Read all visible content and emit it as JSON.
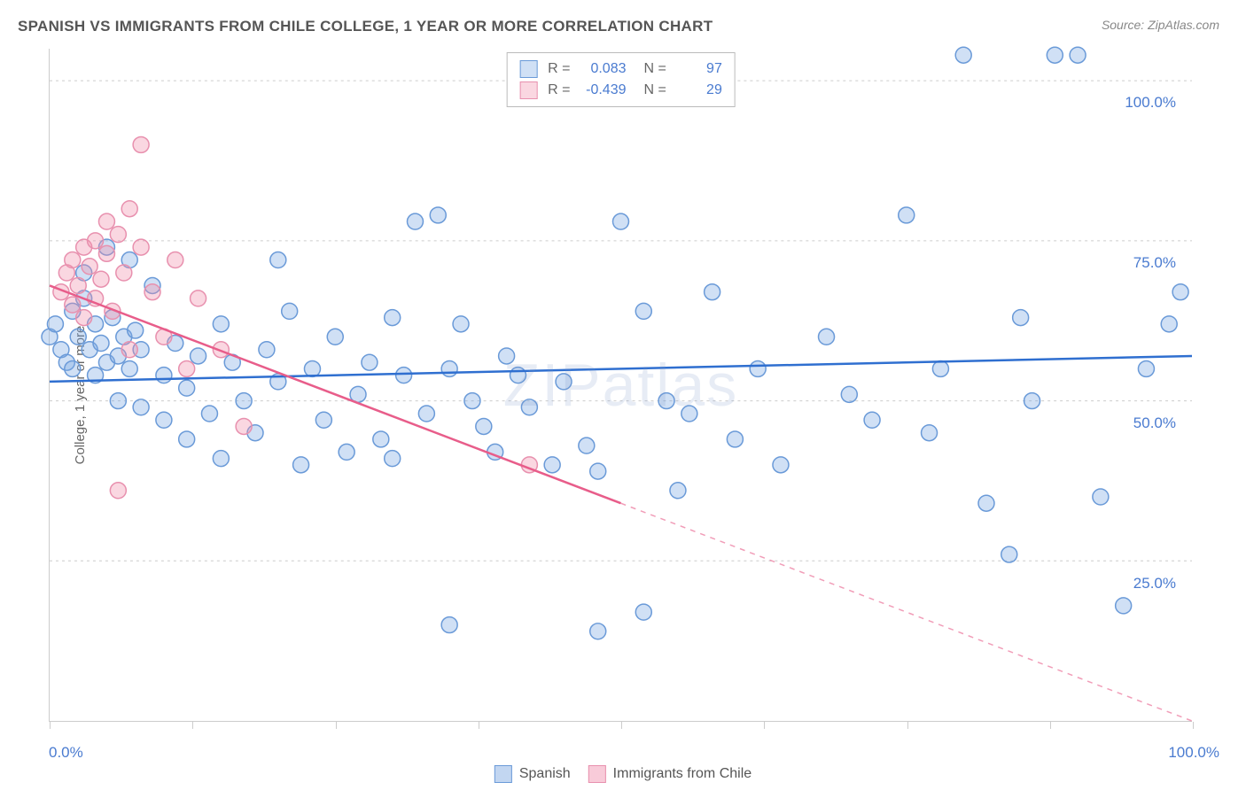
{
  "title": "SPANISH VS IMMIGRANTS FROM CHILE COLLEGE, 1 YEAR OR MORE CORRELATION CHART",
  "source": "Source: ZipAtlas.com",
  "ylabel": "College, 1 year or more",
  "watermark": "ZIPatlas",
  "chart": {
    "type": "scatter",
    "xlim": [
      0,
      100
    ],
    "ylim": [
      0,
      105
    ],
    "x_tick_positions": [
      0,
      12.5,
      25,
      37.5,
      50,
      62.5,
      75,
      87.5,
      100
    ],
    "x_tick_labels_shown": {
      "0": "0.0%",
      "100": "100.0%"
    },
    "y_gridlines": [
      25,
      50,
      75,
      100
    ],
    "y_tick_labels": {
      "25": "25.0%",
      "50": "50.0%",
      "75": "75.0%",
      "100": "100.0%"
    },
    "grid_color": "#cccccc",
    "background_color": "#ffffff",
    "axis_label_color": "#4a7bd0",
    "series": [
      {
        "name": "Spanish",
        "marker_color_fill": "rgba(120,165,225,0.35)",
        "marker_color_stroke": "#6a9ad8",
        "marker_radius": 9,
        "trend_color": "#2f6fd0",
        "trend_width": 2.5,
        "trend": {
          "x1": 0,
          "y1": 53,
          "x2": 100,
          "y2": 57,
          "solid_until_x": 100
        },
        "R": "0.083",
        "N": "97",
        "points": [
          [
            0,
            60
          ],
          [
            0.5,
            62
          ],
          [
            1,
            58
          ],
          [
            1.5,
            56
          ],
          [
            2,
            64
          ],
          [
            2,
            55
          ],
          [
            2.5,
            60
          ],
          [
            3,
            66
          ],
          [
            3.5,
            58
          ],
          [
            4,
            62
          ],
          [
            4,
            54
          ],
          [
            4.5,
            59
          ],
          [
            5,
            56
          ],
          [
            5.5,
            63
          ],
          [
            6,
            57
          ],
          [
            6,
            50
          ],
          [
            6.5,
            60
          ],
          [
            7,
            55
          ],
          [
            7.5,
            61
          ],
          [
            8,
            58
          ],
          [
            8,
            49
          ],
          [
            3,
            70
          ],
          [
            5,
            74
          ],
          [
            7,
            72
          ],
          [
            9,
            68
          ],
          [
            10,
            54
          ],
          [
            10,
            47
          ],
          [
            11,
            59
          ],
          [
            12,
            52
          ],
          [
            12,
            44
          ],
          [
            13,
            57
          ],
          [
            14,
            48
          ],
          [
            15,
            62
          ],
          [
            15,
            41
          ],
          [
            16,
            56
          ],
          [
            17,
            50
          ],
          [
            18,
            45
          ],
          [
            19,
            58
          ],
          [
            20,
            53
          ],
          [
            20,
            72
          ],
          [
            21,
            64
          ],
          [
            22,
            40
          ],
          [
            23,
            55
          ],
          [
            24,
            47
          ],
          [
            25,
            60
          ],
          [
            26,
            42
          ],
          [
            27,
            51
          ],
          [
            28,
            56
          ],
          [
            29,
            44
          ],
          [
            30,
            63
          ],
          [
            30,
            41
          ],
          [
            32,
            78
          ],
          [
            31,
            54
          ],
          [
            33,
            48
          ],
          [
            34,
            79
          ],
          [
            35,
            55
          ],
          [
            36,
            62
          ],
          [
            37,
            50
          ],
          [
            38,
            46
          ],
          [
            39,
            42
          ],
          [
            40,
            57
          ],
          [
            41,
            54
          ],
          [
            42,
            49
          ],
          [
            35,
            15
          ],
          [
            44,
            40
          ],
          [
            45,
            53
          ],
          [
            47,
            43
          ],
          [
            48,
            14
          ],
          [
            48,
            39
          ],
          [
            50,
            78
          ],
          [
            52,
            64
          ],
          [
            54,
            50
          ],
          [
            55,
            36
          ],
          [
            56,
            48
          ],
          [
            58,
            67
          ],
          [
            60,
            44
          ],
          [
            62,
            55
          ],
          [
            64,
            40
          ],
          [
            52,
            17
          ],
          [
            68,
            60
          ],
          [
            70,
            51
          ],
          [
            72,
            47
          ],
          [
            75,
            79
          ],
          [
            78,
            55
          ],
          [
            80,
            104
          ],
          [
            82,
            34
          ],
          [
            84,
            26
          ],
          [
            86,
            50
          ],
          [
            88,
            104
          ],
          [
            90,
            104
          ],
          [
            92,
            35
          ],
          [
            94,
            18
          ],
          [
            96,
            55
          ],
          [
            98,
            62
          ],
          [
            99,
            67
          ],
          [
            85,
            63
          ],
          [
            77,
            45
          ]
        ]
      },
      {
        "name": "Immigrants from Chile",
        "marker_color_fill": "rgba(240,140,170,0.35)",
        "marker_color_stroke": "#e890ae",
        "marker_radius": 9,
        "trend_color": "#e85d8a",
        "trend_width": 2.5,
        "trend": {
          "x1": 0,
          "y1": 68,
          "x2": 100,
          "y2": 0,
          "solid_until_x": 50
        },
        "R": "-0.439",
        "N": "29",
        "points": [
          [
            1,
            67
          ],
          [
            1.5,
            70
          ],
          [
            2,
            65
          ],
          [
            2,
            72
          ],
          [
            2.5,
            68
          ],
          [
            3,
            63
          ],
          [
            3,
            74
          ],
          [
            3.5,
            71
          ],
          [
            4,
            66
          ],
          [
            4,
            75
          ],
          [
            4.5,
            69
          ],
          [
            5,
            73
          ],
          [
            5,
            78
          ],
          [
            5.5,
            64
          ],
          [
            6,
            76
          ],
          [
            6.5,
            70
          ],
          [
            7,
            80
          ],
          [
            7,
            58
          ],
          [
            8,
            74
          ],
          [
            8,
            90
          ],
          [
            9,
            67
          ],
          [
            10,
            60
          ],
          [
            11,
            72
          ],
          [
            12,
            55
          ],
          [
            13,
            66
          ],
          [
            15,
            58
          ],
          [
            6,
            36
          ],
          [
            17,
            46
          ],
          [
            42,
            40
          ]
        ]
      }
    ]
  },
  "legend_bottom": [
    {
      "label": "Spanish",
      "fill": "rgba(120,165,225,0.45)",
      "stroke": "#6a9ad8"
    },
    {
      "label": "Immigrants from Chile",
      "fill": "rgba(240,140,170,0.45)",
      "stroke": "#e890ae"
    }
  ]
}
